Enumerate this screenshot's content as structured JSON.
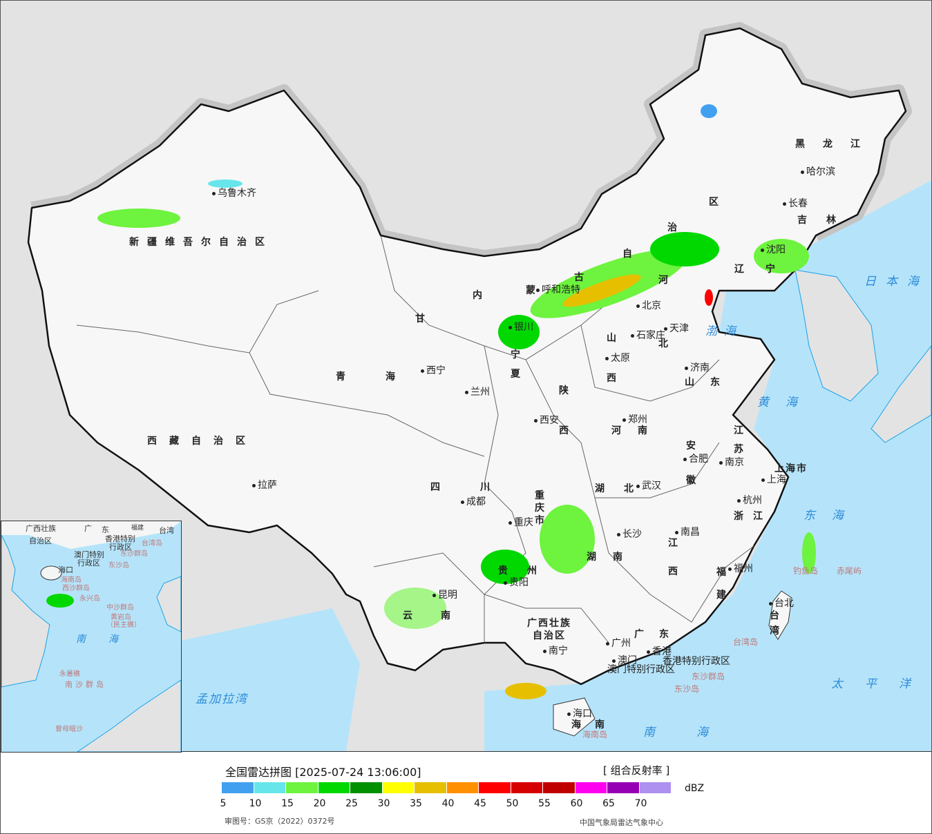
{
  "legend": {
    "title": "全国雷达拼图 [2025-07-24 13:06:00]",
    "product": "[ 组合反射率 ]",
    "unit": "dBZ",
    "colors": [
      "#42a0f0",
      "#66e6ea",
      "#6ef33e",
      "#00d800",
      "#009000",
      "#ffff00",
      "#e6c000",
      "#ff9000",
      "#ff0000",
      "#d60000",
      "#c00000",
      "#ff00f0",
      "#9600b4",
      "#ad90f0"
    ],
    "ticks": [
      "5",
      "10",
      "15",
      "20",
      "25",
      "30",
      "35",
      "40",
      "45",
      "50",
      "55",
      "60",
      "65",
      "70"
    ],
    "approval": "审图号：GS京（2022）0372号",
    "credit": "中国气象局雷达气象中心"
  },
  "provinces": [
    "新疆维吾尔自治区",
    "西藏自治区",
    "青",
    "海",
    "甘",
    "内",
    "蒙",
    "古",
    "自",
    "治",
    "区",
    "黑",
    "龙",
    "江",
    "吉",
    "林",
    "辽",
    "宁",
    "河",
    "北",
    "山",
    "西",
    "山",
    "东",
    "陕",
    "西",
    "河",
    "南",
    "江",
    "苏",
    "安",
    "徽",
    "湖",
    "北",
    "四",
    "川",
    "重",
    "庆",
    "市",
    "贵",
    "州",
    "湖",
    "南",
    "江",
    "西",
    "浙",
    "江",
    "福",
    "建",
    "云",
    "南",
    "广西壮族",
    "自治区",
    "广",
    "东",
    "海",
    "南",
    "台",
    "湾",
    "上海市",
    "宁",
    "夏"
  ],
  "cities": [
    "乌鲁木齐",
    "拉萨",
    "西宁",
    "兰州",
    "银川",
    "呼和浩特",
    "北京",
    "天津",
    "石家庄",
    "太原",
    "济南",
    "郑州",
    "西安",
    "合肥",
    "南京",
    "上海",
    "杭州",
    "武汉",
    "成都",
    "重庆",
    "长沙",
    "南昌",
    "福州",
    "贵阳",
    "昆明",
    "南宁",
    "广州",
    "香港",
    "澳门",
    "台北",
    "哈尔滨",
    "长春",
    "沈阳",
    "海口"
  ],
  "seas": [
    "日本海",
    "渤海",
    "黄海",
    "东海",
    "太平洋",
    "南海",
    "孟加拉湾"
  ],
  "annotations": [
    "香港特别行政区",
    "澳门特别行政区",
    "东沙群岛",
    "东沙岛",
    "台湾岛",
    "钓鱼岛",
    "赤尾屿",
    "海南岛"
  ],
  "inset": {
    "labels": [
      "广西壮族",
      "自治区",
      "广",
      "东",
      "福建",
      "台湾",
      "香港特别",
      "行政区",
      "澳门特别",
      "行政区",
      "台湾岛",
      "东沙群岛",
      "东沙岛",
      "海口",
      "海南岛",
      "西沙群岛",
      "永兴岛",
      "中沙群岛",
      "黄岩岛",
      "（民主礁）",
      "南",
      "海",
      "永暑礁",
      "南沙群岛",
      "曾母暗沙"
    ]
  }
}
